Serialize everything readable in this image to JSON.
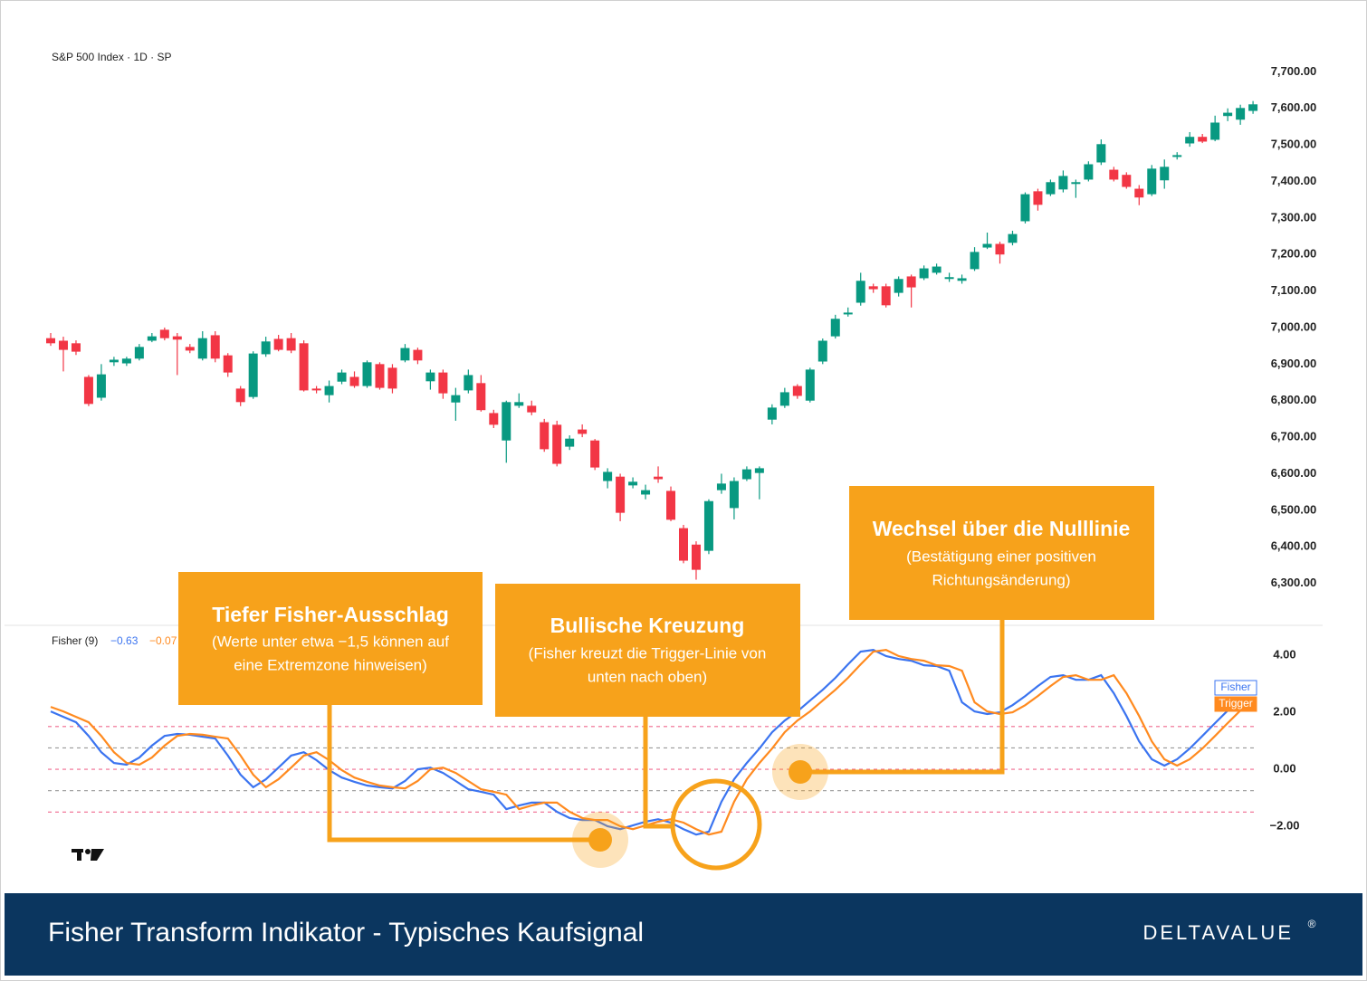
{
  "chart_data": [
    {
      "type": "candlestick",
      "title": "S&P 500 Index · 1D · SP",
      "open": [
        6971,
        6964,
        6957,
        6865,
        6808,
        6905,
        6902,
        6915,
        6964,
        6994,
        6976,
        6947,
        6915,
        6979,
        6924,
        6833,
        6810,
        6927,
        6969,
        6971,
        6957,
        6833,
        6815,
        6852,
        6865,
        6840,
        6900,
        6890,
        6910,
        6939,
        6853,
        6877,
        6795,
        6828,
        6848,
        6766,
        6691,
        6786,
        6786,
        6741,
        6734,
        6674,
        6721,
        6691,
        6580,
        6592,
        6568,
        6543,
        6592,
        6553,
        6451,
        6406,
        6389,
        6555,
        6506,
        6585,
        6602,
        6748,
        6786,
        6840,
        6800,
        6907,
        6976,
        7036,
        7068,
        7113,
        7113,
        7095,
        7140,
        7135,
        7150,
        7133,
        7128,
        7160,
        7219,
        7229,
        7232,
        7291,
        7373,
        7365,
        7378,
        7393,
        7405,
        7452,
        7432,
        7418,
        7380,
        7365,
        7403,
        7467,
        7504,
        7522,
        7514,
        7579,
        7569,
        7593
      ],
      "high": [
        6985,
        6975,
        6965,
        6870,
        6900,
        6920,
        6920,
        6955,
        6985,
        7000,
        6985,
        6955,
        6990,
        6990,
        6930,
        6840,
        6935,
        6975,
        6980,
        6985,
        6965,
        6840,
        6855,
        6885,
        6880,
        6910,
        6905,
        6900,
        6955,
        6945,
        6885,
        6885,
        6835,
        6885,
        6870,
        6775,
        6800,
        6820,
        6800,
        6750,
        6745,
        6705,
        6735,
        6695,
        6615,
        6600,
        6590,
        6570,
        6620,
        6565,
        6460,
        6415,
        6530,
        6600,
        6590,
        6620,
        6620,
        6790,
        6835,
        6845,
        6890,
        6970,
        7035,
        7055,
        7150,
        7120,
        7120,
        7140,
        7145,
        7170,
        7175,
        7150,
        7145,
        7220,
        7260,
        7235,
        7265,
        7370,
        7380,
        7405,
        7430,
        7405,
        7455,
        7515,
        7440,
        7425,
        7390,
        7445,
        7460,
        7480,
        7535,
        7530,
        7580,
        7600,
        7610,
        7620
      ],
      "low": [
        6950,
        6880,
        6925,
        6785,
        6800,
        6895,
        6895,
        6910,
        6960,
        6965,
        6870,
        6930,
        6910,
        6905,
        6865,
        6785,
        6805,
        6920,
        6935,
        6930,
        6825,
        6820,
        6795,
        6845,
        6835,
        6835,
        6830,
        6820,
        6905,
        6900,
        6830,
        6805,
        6745,
        6820,
        6770,
        6725,
        6630,
        6780,
        6760,
        6660,
        6620,
        6665,
        6700,
        6610,
        6560,
        6470,
        6560,
        6530,
        6575,
        6470,
        6355,
        6310,
        6380,
        6545,
        6475,
        6580,
        6530,
        6735,
        6780,
        6805,
        6795,
        6900,
        6970,
        7030,
        7060,
        7095,
        7055,
        7085,
        7055,
        7130,
        7145,
        7125,
        7120,
        7155,
        7215,
        7175,
        7225,
        7285,
        7320,
        7360,
        7370,
        7355,
        7400,
        7445,
        7400,
        7380,
        7335,
        7360,
        7380,
        7460,
        7495,
        7505,
        7510,
        7565,
        7555,
        7585
      ],
      "close": [
        6957,
        6939,
        6934,
        6791,
        6872,
        6912,
        6915,
        6947,
        6976,
        6971,
        6967,
        6937,
        6971,
        6915,
        6877,
        6796,
        6929,
        6962,
        6939,
        6937,
        6828,
        6828,
        6840,
        6877,
        6840,
        6905,
        6835,
        6833,
        6944,
        6910,
        6877,
        6820,
        6815,
        6870,
        6774,
        6734,
        6796,
        6796,
        6768,
        6667,
        6627,
        6696,
        6709,
        6617,
        6605,
        6493,
        6578,
        6555,
        6585,
        6474,
        6362,
        6337,
        6525,
        6573,
        6580,
        6612,
        6615,
        6781,
        6823,
        6813,
        6885,
        6964,
        7024,
        7041,
        7128,
        7105,
        7061,
        7133,
        7110,
        7162,
        7167,
        7138,
        7135,
        7207,
        7229,
        7200,
        7256,
        7365,
        7336,
        7398,
        7415,
        7398,
        7447,
        7502,
        7405,
        7385,
        7356,
        7435,
        7440,
        7472,
        7522,
        7509,
        7561,
        7588,
        7601,
        7611
      ],
      "up_color": "#089981",
      "down_color": "#f23645",
      "ylim": [
        6185,
        7795
      ],
      "yticks": [
        {
          "value": 7700,
          "label": "7,700.00"
        },
        {
          "value": 7600,
          "label": "7,600.00"
        },
        {
          "value": 7500,
          "label": "7,500.00"
        },
        {
          "value": 7400,
          "label": "7,400.00"
        },
        {
          "value": 7300,
          "label": "7,300.00"
        },
        {
          "value": 7200,
          "label": "7,200.00"
        },
        {
          "value": 7100,
          "label": "7,100.00"
        },
        {
          "value": 7000,
          "label": "7,000.00"
        },
        {
          "value": 6900,
          "label": "6,900.00"
        },
        {
          "value": 6800,
          "label": "6,800.00"
        },
        {
          "value": 6700,
          "label": "6,700.00"
        },
        {
          "value": 6600,
          "label": "6,600.00"
        },
        {
          "value": 6500,
          "label": "6,500.00"
        },
        {
          "value": 6400,
          "label": "6,400.00"
        },
        {
          "value": 6300,
          "label": "6,300.00"
        }
      ]
    },
    {
      "type": "line",
      "title": "Fisher (9)",
      "readouts": [
        "−0.63",
        "−0.07"
      ],
      "series": [
        {
          "name": "Fisher",
          "color": "#3b74f0",
          "values": [
            2.03,
            1.84,
            1.65,
            1.17,
            0.6,
            0.22,
            0.16,
            0.41,
            0.83,
            1.17,
            1.24,
            1.21,
            1.14,
            1.08,
            0.48,
            -0.19,
            -0.63,
            -0.35,
            0.06,
            0.48,
            0.6,
            0.32,
            -0.03,
            -0.29,
            -0.44,
            -0.57,
            -0.63,
            -0.67,
            -0.41,
            0,
            0.06,
            -0.13,
            -0.41,
            -0.7,
            -0.79,
            -0.89,
            -1.4,
            -1.27,
            -1.17,
            -1.17,
            -1.49,
            -1.71,
            -1.78,
            -1.78,
            -2.0,
            -2.1,
            -1.97,
            -1.84,
            -1.75,
            -1.87,
            -2.1,
            -2.29,
            -2.19,
            -1.14,
            -0.35,
            0.22,
            0.73,
            1.3,
            1.71,
            2.03,
            2.41,
            2.79,
            3.21,
            3.68,
            4.13,
            4.19,
            3.97,
            3.87,
            3.81,
            3.65,
            3.62,
            3.46,
            2.35,
            2.03,
            1.94,
            2.0,
            2.25,
            2.57,
            2.92,
            3.24,
            3.3,
            3.14,
            3.14,
            3.3,
            2.67,
            1.87,
            0.98,
            0.35,
            0.13,
            0.35,
            0.73,
            1.17,
            1.62,
            2.06,
            null,
            null
          ]
        },
        {
          "name": "Trigger",
          "color": "#ff8a1f",
          "values": [
            2.19,
            2.03,
            1.84,
            1.65,
            1.17,
            0.6,
            0.22,
            0.16,
            0.41,
            0.83,
            1.17,
            1.24,
            1.21,
            1.14,
            1.08,
            0.48,
            -0.19,
            -0.63,
            -0.35,
            0.06,
            0.48,
            0.6,
            0.32,
            -0.03,
            -0.29,
            -0.44,
            -0.57,
            -0.63,
            -0.67,
            -0.41,
            0,
            0.06,
            -0.13,
            -0.41,
            -0.7,
            -0.79,
            -0.89,
            -1.4,
            -1.27,
            -1.17,
            -1.17,
            -1.49,
            -1.71,
            -1.78,
            -1.78,
            -2.0,
            -2.1,
            -1.97,
            -1.84,
            -1.75,
            -1.87,
            -2.1,
            -2.29,
            -2.19,
            -1.14,
            -0.35,
            0.22,
            0.73,
            1.3,
            1.71,
            2.03,
            2.41,
            2.79,
            3.21,
            3.68,
            4.13,
            4.19,
            3.97,
            3.87,
            3.81,
            3.65,
            3.62,
            3.46,
            2.35,
            2.03,
            1.94,
            2.0,
            2.25,
            2.57,
            2.92,
            3.24,
            3.3,
            3.14,
            3.14,
            3.3,
            2.67,
            1.87,
            0.98,
            0.35,
            0.13,
            0.35,
            0.73,
            1.17,
            1.62,
            2.06,
            null
          ]
        }
      ],
      "hlines": [
        {
          "value": 1.5,
          "color": "#f06a8f"
        },
        {
          "value": 0.75,
          "color": "#9a9a9a"
        },
        {
          "value": 0,
          "color": "#f06a8f"
        },
        {
          "value": -0.75,
          "color": "#9a9a9a"
        },
        {
          "value": -1.5,
          "color": "#f06a8f"
        }
      ],
      "ylim": [
        -3.84,
        5.05
      ],
      "yticks": [
        {
          "value": 4,
          "label": "4.00"
        },
        {
          "value": 2,
          "label": "2.00"
        },
        {
          "value": 0,
          "label": "0.00"
        },
        {
          "value": -2,
          "label": "−2.00"
        }
      ]
    }
  ],
  "annotations": [
    {
      "title": "Tiefer Fisher-Ausschlag",
      "lines": [
        "(Werte unter etwa −1,5 können auf",
        "eine Extremzone hinweisen)"
      ]
    },
    {
      "title": "Bullische Kreuzung",
      "lines": [
        "(Fisher kreuzt die Trigger-Linie von",
        "unten nach oben)"
      ]
    },
    {
      "title": "Wechsel über die Nulllinie",
      "lines": [
        "(Bestätigung einer positiven",
        "Richtungsänderung)"
      ]
    }
  ],
  "footer": {
    "title": "Fisher Transform Indikator - Typisches Kaufsignal",
    "brand": "DELTAVALUE",
    "brand_mark": "®"
  }
}
